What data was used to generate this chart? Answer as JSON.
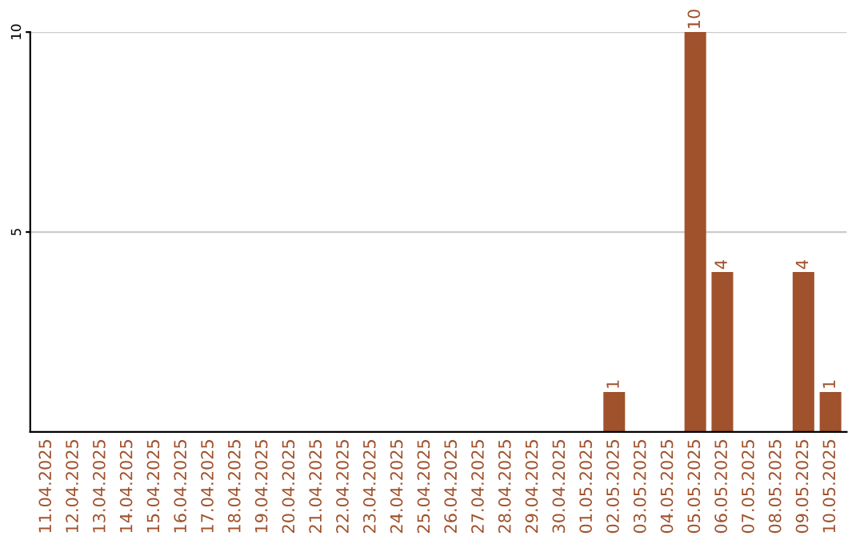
{
  "chart_data": {
    "type": "bar",
    "categories": [
      "11.04.2025",
      "12.04.2025",
      "13.04.2025",
      "14.04.2025",
      "15.04.2025",
      "16.04.2025",
      "17.04.2025",
      "18.04.2025",
      "19.04.2025",
      "20.04.2025",
      "21.04.2025",
      "22.04.2025",
      "23.04.2025",
      "24.04.2025",
      "25.04.2025",
      "26.04.2025",
      "27.04.2025",
      "28.04.2025",
      "29.04.2025",
      "30.04.2025",
      "01.05.2025",
      "02.05.2025",
      "03.05.2025",
      "04.05.2025",
      "05.05.2025",
      "06.05.2025",
      "07.05.2025",
      "08.05.2025",
      "09.05.2025",
      "10.05.2025"
    ],
    "values": [
      0,
      0,
      0,
      0,
      0,
      0,
      0,
      0,
      0,
      0,
      0,
      0,
      0,
      0,
      0,
      0,
      0,
      0,
      0,
      0,
      0,
      1,
      0,
      0,
      10,
      4,
      0,
      0,
      4,
      1
    ],
    "value_labels": [
      null,
      null,
      null,
      null,
      null,
      null,
      null,
      null,
      null,
      null,
      null,
      null,
      null,
      null,
      null,
      null,
      null,
      null,
      null,
      null,
      null,
      "1",
      null,
      null,
      "10",
      "4",
      null,
      null,
      "4",
      "1"
    ],
    "color": "#a0522d",
    "ylim": [
      0,
      10
    ],
    "yticks": [
      5,
      10
    ],
    "grid": "y",
    "legend": false
  }
}
